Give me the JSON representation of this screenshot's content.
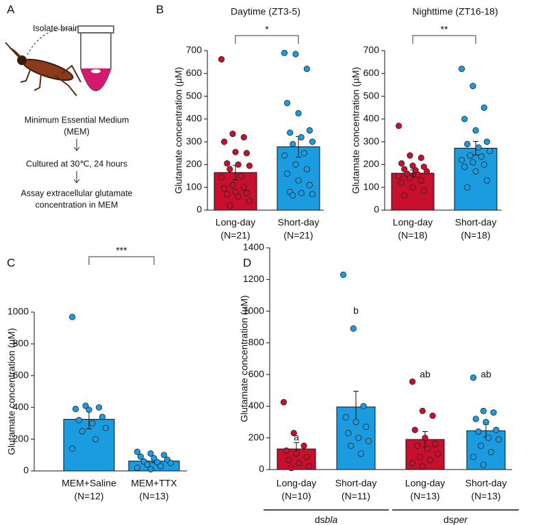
{
  "panel_a": {
    "label": "A",
    "isolate": "Isolate brain",
    "medium": [
      "Minimum Essential Medium",
      "(MEM)"
    ],
    "culture": "Cultured at 30℃, 24 hours",
    "assay": [
      "Assay extracellular glutamate",
      "concentration in MEM"
    ]
  },
  "chart_data": [
    {
      "type": "bar",
      "panel_label": "B",
      "title": "Daytime (ZT3-5)",
      "y_label": "Glutamate concentration (µM)",
      "categories": [
        "Long-day",
        "Short-day"
      ],
      "n_labels": [
        "(N=21)",
        "(N=21)"
      ],
      "colors": [
        "#c8102e",
        "#1c9ce0"
      ],
      "values": [
        165,
        278
      ],
      "errors": [
        32,
        45
      ],
      "points": [
        [
          662,
          335,
          320,
          300,
          255,
          250,
          205,
          200,
          195,
          180,
          150,
          145,
          110,
          100,
          95,
          80,
          75,
          70,
          60,
          40,
          20
        ],
        [
          690,
          685,
          620,
          470,
          425,
          350,
          340,
          320,
          300,
          290,
          250,
          240,
          200,
          180,
          160,
          130,
          110,
          80,
          75,
          70,
          65
        ]
      ],
      "ylim": [
        0,
        700
      ],
      "yticks": [
        0,
        100,
        200,
        300,
        400,
        500,
        600,
        700
      ],
      "significance": "*"
    },
    {
      "type": "bar",
      "title": "Nighttime (ZT16-18)",
      "y_label": "Glutamate concentration (µM)",
      "categories": [
        "Long-day",
        "Short-day"
      ],
      "n_labels": [
        "(N=18)",
        "(N=18)"
      ],
      "colors": [
        "#c8102e",
        "#1c9ce0"
      ],
      "values": [
        162,
        272
      ],
      "errors": [
        15,
        30
      ],
      "points": [
        [
          370,
          240,
          230,
          205,
          195,
          190,
          180,
          175,
          170,
          160,
          155,
          150,
          140,
          130,
          120,
          100,
          85,
          65
        ],
        [
          620,
          545,
          450,
          400,
          350,
          300,
          290,
          275,
          260,
          240,
          235,
          220,
          210,
          200,
          190,
          170,
          130,
          100
        ]
      ],
      "ylim": [
        0,
        700
      ],
      "yticks": [
        0,
        100,
        200,
        300,
        400,
        500,
        600,
        700
      ],
      "significance": "**"
    },
    {
      "type": "bar",
      "panel_label": "C",
      "y_label": "Glutamate concentration (µM)",
      "categories": [
        "MEM+Saline",
        "MEM+TTX"
      ],
      "n_labels": [
        "(N=12)",
        "(N=13)"
      ],
      "colors": [
        "#1c9ce0",
        "#1c9ce0"
      ],
      "values": [
        325,
        62
      ],
      "errors": [
        60,
        10
      ],
      "points": [
        [
          970,
          410,
          400,
          390,
          385,
          340,
          320,
          300,
          270,
          250,
          200,
          140
        ],
        [
          120,
          110,
          100,
          90,
          80,
          70,
          60,
          55,
          50,
          40,
          30,
          20,
          10
        ]
      ],
      "ylim": [
        0,
        1000
      ],
      "yticks": [
        0,
        200,
        400,
        600,
        800,
        1000
      ],
      "significance": "***"
    },
    {
      "type": "bar",
      "panel_label": "D",
      "y_label": "Glutamate concentration (µM)",
      "categories": [
        "Long-day",
        "Short-day",
        "Long-day",
        "Short-day"
      ],
      "n_labels": [
        "(N=10)",
        "(N=11)",
        "(N=13)",
        "(N=13)"
      ],
      "colors": [
        "#c8102e",
        "#1c9ce0",
        "#c8102e",
        "#1c9ce0"
      ],
      "values": [
        130,
        395,
        190,
        245
      ],
      "errors": [
        40,
        100,
        50,
        40
      ],
      "points": [
        [
          425,
          230,
          150,
          120,
          100,
          80,
          60,
          40,
          20,
          10
        ],
        [
          1230,
          890,
          400,
          330,
          300,
          270,
          230,
          200,
          180,
          150,
          100
        ],
        [
          555,
          370,
          340,
          250,
          200,
          160,
          150,
          130,
          100,
          80,
          60,
          40,
          20
        ],
        [
          580,
          370,
          360,
          320,
          300,
          250,
          240,
          200,
          190,
          150,
          110,
          80,
          30
        ]
      ],
      "letters": [
        "a",
        "b",
        "ab",
        "ab"
      ],
      "groups": [
        {
          "prefix": "ds",
          "gene": "bla"
        },
        {
          "prefix": "ds",
          "gene": "per"
        }
      ],
      "ylim": [
        0,
        1400
      ],
      "yticks": [
        0,
        200,
        400,
        600,
        800,
        1000,
        1200,
        1400
      ]
    }
  ]
}
